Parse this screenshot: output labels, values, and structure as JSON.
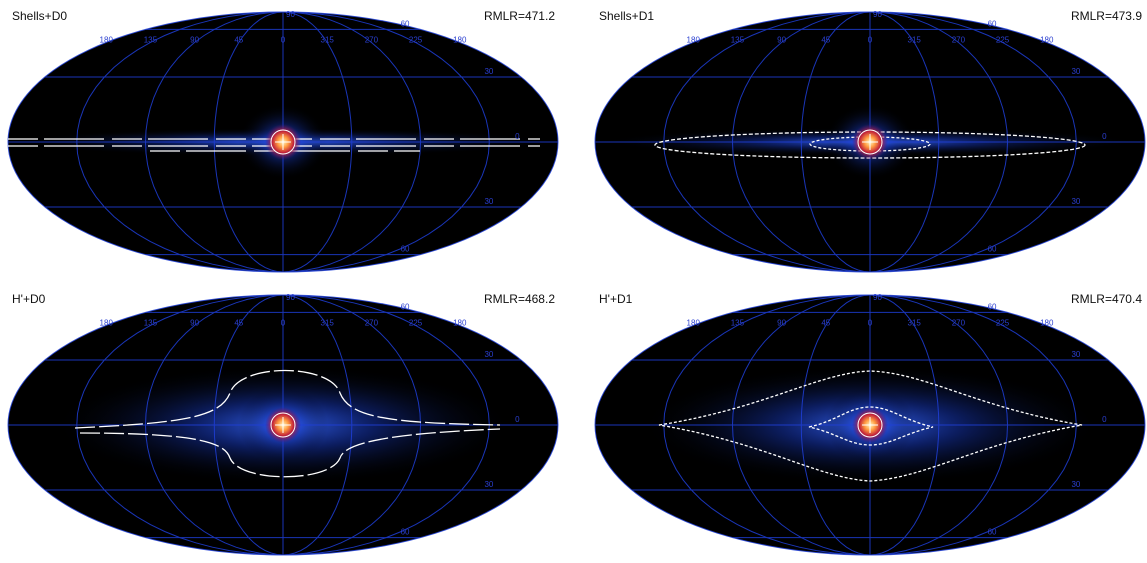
{
  "panels": [
    {
      "title": "Shells+D0",
      "stat": "RMLR=471.2"
    },
    {
      "title": "Shells+D1",
      "stat": "RMLR=473.9"
    },
    {
      "title": "H'+D0",
      "stat": "RMLR=468.2"
    },
    {
      "title": "H'+D1",
      "stat": "RMLR=470.4"
    }
  ],
  "longitude_labels": [
    "180",
    "135",
    "90",
    "45",
    "0",
    "315",
    "270",
    "225",
    "180"
  ],
  "latitude_labels": [
    "90",
    "60",
    "30",
    "0",
    "30",
    "60"
  ]
}
